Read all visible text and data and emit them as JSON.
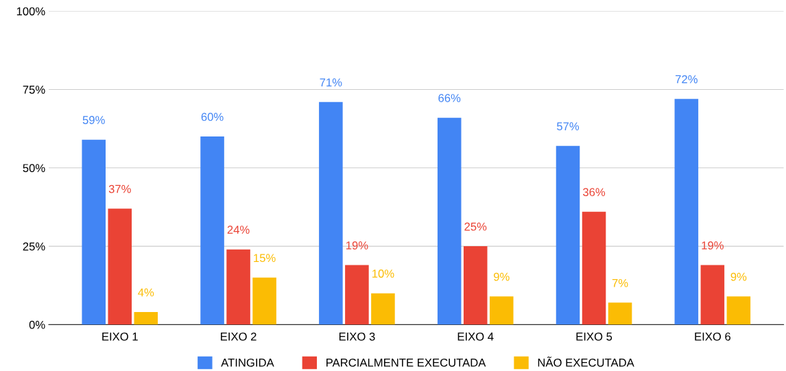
{
  "chart_data": {
    "type": "bar",
    "categories": [
      "EIXO 1",
      "EIXO 2",
      "EIXO 3",
      "EIXO 4",
      "EIXO 5",
      "EIXO 6"
    ],
    "series": [
      {
        "name": "ATINGIDA",
        "color": "#4285f4",
        "values": [
          59,
          60,
          71,
          66,
          57,
          72
        ],
        "value_labels": [
          "59%",
          "60%",
          "71%",
          "66%",
          "57%",
          "72%"
        ]
      },
      {
        "name": "PARCIALMENTE EXECUTADA",
        "color": "#ea4335",
        "values": [
          37,
          24,
          19,
          25,
          36,
          19
        ],
        "value_labels": [
          "37%",
          "24%",
          "19%",
          "25%",
          "36%",
          "19%"
        ]
      },
      {
        "name": "NÃO EXECUTADA",
        "color": "#fbbc04",
        "values": [
          4,
          15,
          10,
          9,
          7,
          9
        ],
        "value_labels": [
          "4%",
          "15%",
          "10%",
          "9%",
          "7%",
          "9%"
        ]
      }
    ],
    "ylim": [
      0,
      100
    ],
    "yticks": [
      {
        "value": 0,
        "label": "0%"
      },
      {
        "value": 25,
        "label": "25%"
      },
      {
        "value": 50,
        "label": "50%"
      },
      {
        "value": 75,
        "label": "75%"
      },
      {
        "value": 100,
        "label": "100%"
      }
    ],
    "grid": "y",
    "legend": "bottom"
  }
}
